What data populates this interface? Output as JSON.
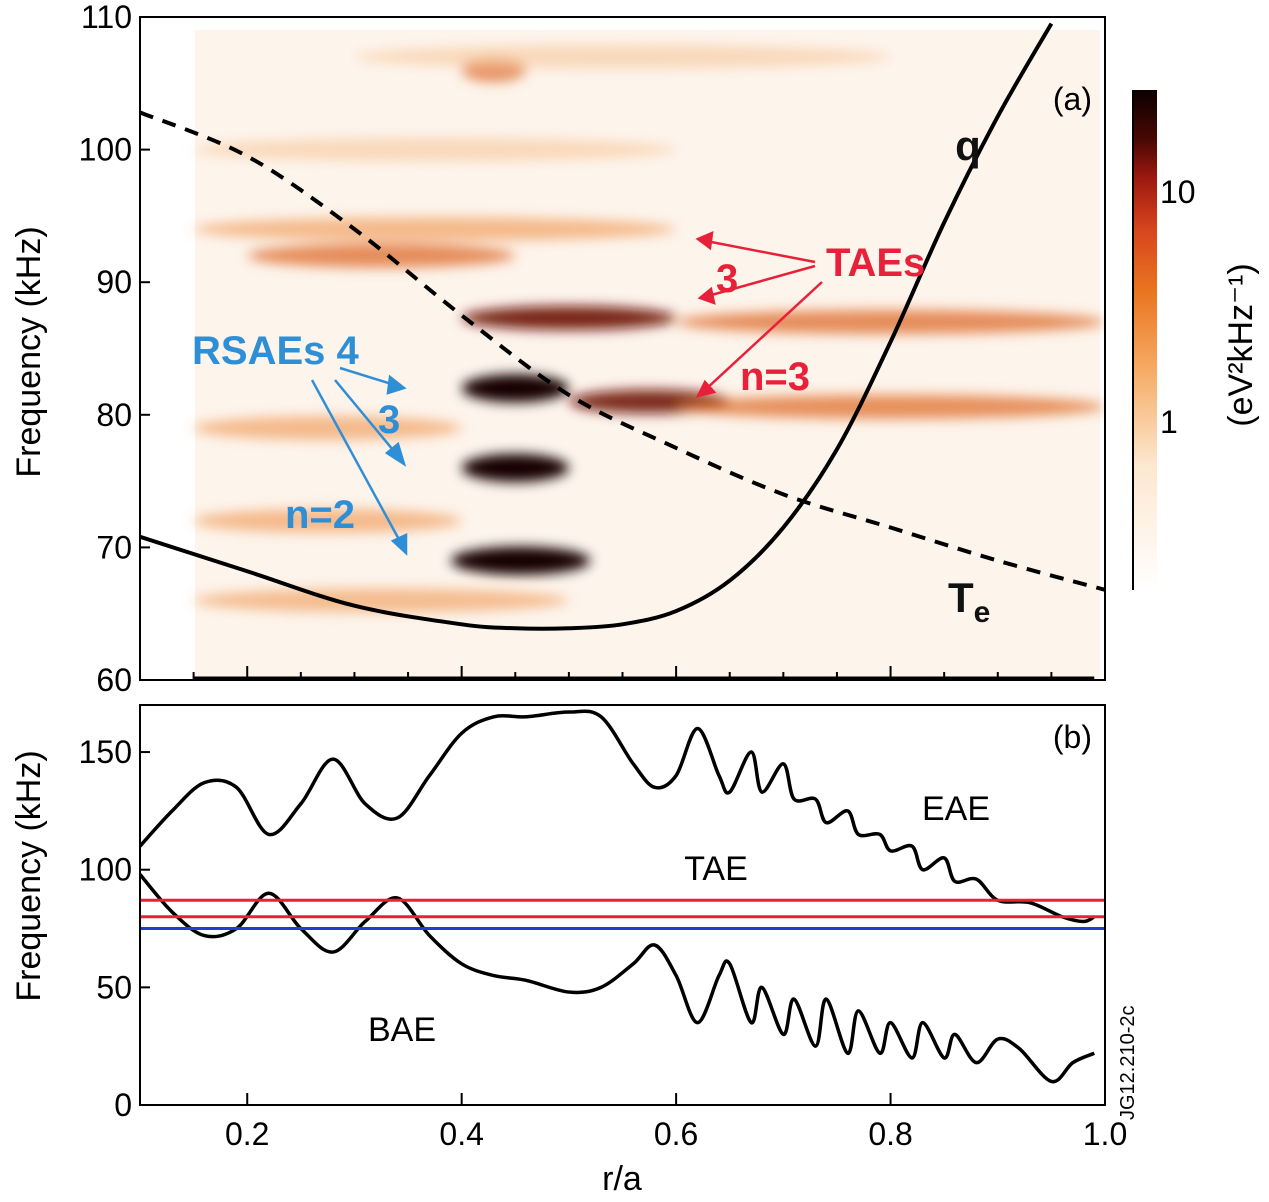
{
  "chart_data": [
    {
      "panel_label": "(a)",
      "type": "heatmap",
      "ylabel": "Frequency (kHz)",
      "ylim": [
        60,
        110
      ],
      "xlim": [
        0.1,
        1.0
      ],
      "yticks": [
        "60",
        "70",
        "80",
        "90",
        "100",
        "110"
      ],
      "colorbar": {
        "label": "(eV²kHz⁻¹)",
        "tick_labels": [
          "1",
          "10"
        ],
        "scale": "log"
      },
      "curves": [
        {
          "label": "q",
          "style": "solid",
          "x": [
            0.1,
            0.2,
            0.3,
            0.4,
            0.45,
            0.5,
            0.55,
            0.6,
            0.65,
            0.7,
            0.75,
            0.8,
            0.85,
            0.9,
            0.95
          ],
          "y": [
            70.8,
            68.2,
            65.6,
            64.2,
            63.9,
            63.9,
            64.2,
            65.2,
            67.5,
            71.5,
            77.4,
            85.5,
            94.5,
            102.5,
            109.5
          ]
        },
        {
          "label": "T",
          "label_sub": "e",
          "style": "dashed",
          "x": [
            0.1,
            0.2,
            0.3,
            0.4,
            0.5,
            0.6,
            0.7,
            0.8,
            0.9,
            1.0
          ],
          "y": [
            102.8,
            99.5,
            94.0,
            87.5,
            81.5,
            77.5,
            74.0,
            71.5,
            69.0,
            66.8
          ]
        }
      ],
      "mode_bands": [
        {
          "x": [
            0.4,
            0.5
          ],
          "y": 82,
          "intensity": 1.0
        },
        {
          "x": [
            0.4,
            0.5
          ],
          "y": 76,
          "intensity": 1.0
        },
        {
          "x": [
            0.39,
            0.52
          ],
          "y": 69,
          "intensity": 1.0
        },
        {
          "x": [
            0.4,
            0.6
          ],
          "y": 87.3,
          "intensity": 0.75
        },
        {
          "x": [
            0.5,
            0.65
          ],
          "y": 81,
          "intensity": 0.7
        },
        {
          "x": [
            0.6,
            1.0
          ],
          "y": 87,
          "intensity": 0.5
        },
        {
          "x": [
            0.6,
            1.0
          ],
          "y": 80.6,
          "intensity": 0.45
        },
        {
          "x": [
            0.15,
            0.6
          ],
          "y": 94,
          "intensity": 0.4
        },
        {
          "x": [
            0.2,
            0.45
          ],
          "y": 92,
          "intensity": 0.5
        },
        {
          "x": [
            0.15,
            0.4
          ],
          "y": 79,
          "intensity": 0.4
        },
        {
          "x": [
            0.15,
            0.4
          ],
          "y": 72,
          "intensity": 0.4
        },
        {
          "x": [
            0.15,
            0.5
          ],
          "y": 66,
          "intensity": 0.35
        },
        {
          "x": [
            0.4,
            0.46
          ],
          "y": 106,
          "intensity": 0.45
        },
        {
          "x": [
            0.15,
            0.6
          ],
          "y": 100,
          "intensity": 0.25
        },
        {
          "x": [
            0.3,
            0.8
          ],
          "y": 107,
          "intensity": 0.25
        }
      ],
      "annotations": [
        {
          "text": "RSAEs 4",
          "color": "#2f8fd6"
        },
        {
          "text": "3",
          "color": "#2f8fd6"
        },
        {
          "text": "n=2",
          "color": "#2f8fd6"
        },
        {
          "text": "TAEs",
          "color": "#e8213a"
        },
        {
          "text": "3",
          "color": "#e8213a"
        },
        {
          "text": "n=3",
          "color": "#e8213a"
        }
      ]
    },
    {
      "panel_label": "(b)",
      "type": "line",
      "xlabel": "r/a",
      "ylabel": "Frequency (kHz)",
      "xlim": [
        0.1,
        1.0
      ],
      "ylim": [
        0,
        170
      ],
      "xticks": [
        "0.2",
        "0.4",
        "0.6",
        "0.8",
        "1.0"
      ],
      "yticks": [
        "0",
        "50",
        "100",
        "150"
      ],
      "region_labels": [
        "EAE",
        "TAE",
        "BAE"
      ],
      "series": [
        {
          "style": "upper-gap-boundary",
          "color": "#000000",
          "x": [
            0.1,
            0.13,
            0.16,
            0.19,
            0.22,
            0.25,
            0.28,
            0.31,
            0.34,
            0.37,
            0.4,
            0.43,
            0.46,
            0.5,
            0.53,
            0.56,
            0.58,
            0.6,
            0.62,
            0.64,
            0.65,
            0.67,
            0.68,
            0.7,
            0.71,
            0.73,
            0.74,
            0.76,
            0.77,
            0.79,
            0.8,
            0.82,
            0.83,
            0.85,
            0.86,
            0.88,
            0.9,
            0.93,
            0.96,
            0.98,
            0.99
          ],
          "y": [
            110,
            125,
            137,
            135,
            115,
            128,
            147,
            128,
            122,
            140,
            158,
            165,
            165,
            167,
            165,
            145,
            135,
            140,
            160,
            140,
            133,
            150,
            133,
            145,
            130,
            130,
            120,
            125,
            115,
            115,
            108,
            110,
            100,
            105,
            95,
            96,
            87,
            86,
            80,
            78,
            80
          ]
        },
        {
          "style": "lower-gap-boundary",
          "color": "#000000",
          "x": [
            0.1,
            0.13,
            0.16,
            0.19,
            0.22,
            0.25,
            0.28,
            0.31,
            0.34,
            0.37,
            0.4,
            0.43,
            0.46,
            0.5,
            0.53,
            0.56,
            0.58,
            0.6,
            0.62,
            0.64,
            0.65,
            0.67,
            0.68,
            0.7,
            0.71,
            0.73,
            0.74,
            0.76,
            0.77,
            0.79,
            0.8,
            0.82,
            0.83,
            0.85,
            0.86,
            0.88,
            0.9,
            0.92,
            0.95,
            0.97,
            0.99
          ],
          "y": [
            98,
            82,
            72,
            75,
            90,
            75,
            65,
            78,
            88,
            72,
            60,
            55,
            53,
            48,
            50,
            60,
            68,
            55,
            35,
            55,
            60,
            35,
            50,
            30,
            45,
            25,
            45,
            22,
            40,
            22,
            35,
            20,
            35,
            20,
            30,
            18,
            28,
            24,
            10,
            18,
            22
          ]
        },
        {
          "style": "frequency-line",
          "color": "#e8213a",
          "x": [
            0.1,
            1.0
          ],
          "y": [
            87,
            87
          ]
        },
        {
          "style": "frequency-line",
          "color": "#e8213a",
          "x": [
            0.1,
            1.0
          ],
          "y": [
            80,
            80
          ]
        },
        {
          "style": "frequency-line",
          "color": "#1f3fcf",
          "x": [
            0.1,
            1.0
          ],
          "y": [
            75,
            75
          ]
        }
      ]
    }
  ],
  "watermark": "JG12.210-2c"
}
